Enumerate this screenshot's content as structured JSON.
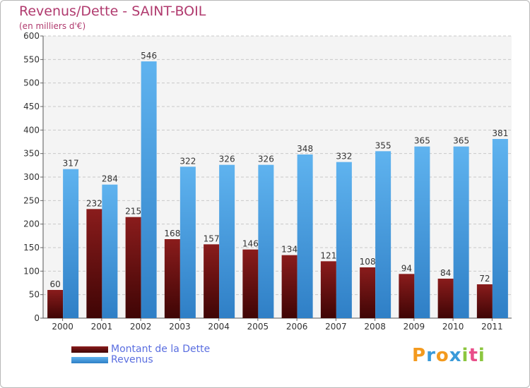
{
  "chart_data": {
    "type": "bar",
    "title": "Revenus/Dette - SAINT-BOIL",
    "subtitle": "(en milliers d'€)",
    "xlabel": "",
    "ylabel": "",
    "ylim": [
      0,
      600
    ],
    "yticks": [
      "0",
      "50",
      "100",
      "150",
      "200",
      "250",
      "300",
      "350",
      "400",
      "450",
      "500",
      "550",
      "600"
    ],
    "grid": true,
    "legend_position": "bottom-left",
    "categories": [
      "2000",
      "2001",
      "2002",
      "2003",
      "2004",
      "2005",
      "2006",
      "2007",
      "2008",
      "2009",
      "2010",
      "2011"
    ],
    "series": [
      {
        "name": "Montant de la Dette",
        "color": "#6e1010",
        "values": [
          60,
          232,
          215,
          168,
          157,
          146,
          134,
          121,
          108,
          94,
          84,
          72
        ]
      },
      {
        "name": "Revenus",
        "color": "#4ea3e6",
        "values": [
          317,
          284,
          546,
          322,
          326,
          326,
          348,
          332,
          355,
          365,
          365,
          381
        ]
      }
    ]
  },
  "brand": {
    "letters": [
      "P",
      "r",
      "o",
      "x",
      "i",
      "t",
      "i"
    ],
    "colors": [
      "#f39a1e",
      "#3a9ad9",
      "#f39a1e",
      "#3a9ad9",
      "#8cc63f",
      "#e94e8a",
      "#8cc63f"
    ]
  }
}
